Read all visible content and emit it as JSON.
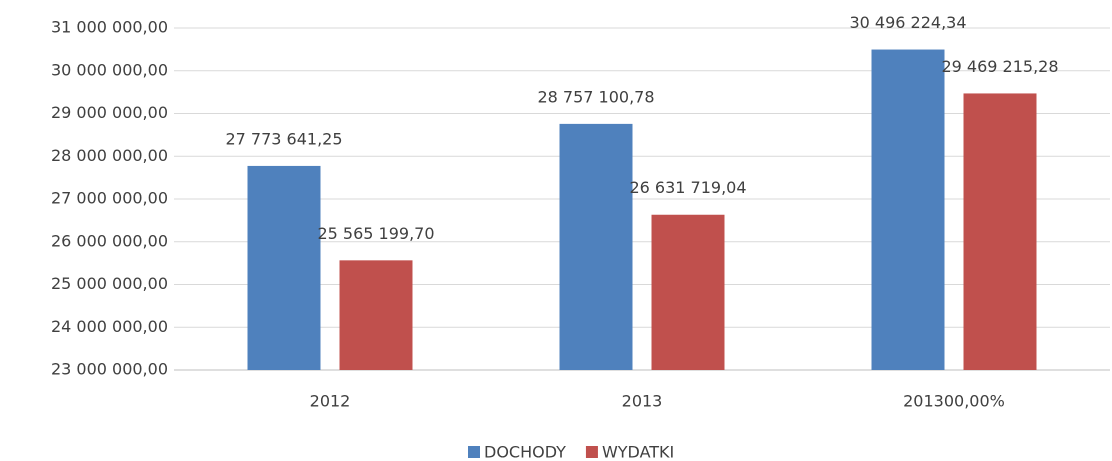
{
  "chart_data": {
    "type": "bar",
    "categories": [
      "2012",
      "2013",
      "201300,00%"
    ],
    "series": [
      {
        "name": "DOCHODY",
        "color": "#4f81bd",
        "values": [
          27773641.25,
          28757100.78,
          30496224.34
        ],
        "value_labels": [
          "27 773 641,25",
          "28 757 100,78",
          "30 496 224,34"
        ]
      },
      {
        "name": "WYDATKI",
        "color": "#c0504d",
        "values": [
          25565199.7,
          26631719.04,
          29469215.28
        ],
        "value_labels": [
          "25 565 199,70",
          "26 631 719,04",
          "29 469 215,28"
        ]
      }
    ],
    "ylim": [
      23000000,
      31000000
    ],
    "yticks": [
      {
        "value": 23000000,
        "label": "23 000 000,00"
      },
      {
        "value": 24000000,
        "label": "24 000 000,00"
      },
      {
        "value": 25000000,
        "label": "25 000 000,00"
      },
      {
        "value": 26000000,
        "label": "26 000 000,00"
      },
      {
        "value": 27000000,
        "label": "27 000 000,00"
      },
      {
        "value": 28000000,
        "label": "28 000 000,00"
      },
      {
        "value": 29000000,
        "label": "29 000 000,00"
      },
      {
        "value": 30000000,
        "label": "30 000 000,00"
      },
      {
        "value": 31000000,
        "label": "31 000 000,00"
      }
    ],
    "grid": true,
    "legend": "bottom"
  }
}
